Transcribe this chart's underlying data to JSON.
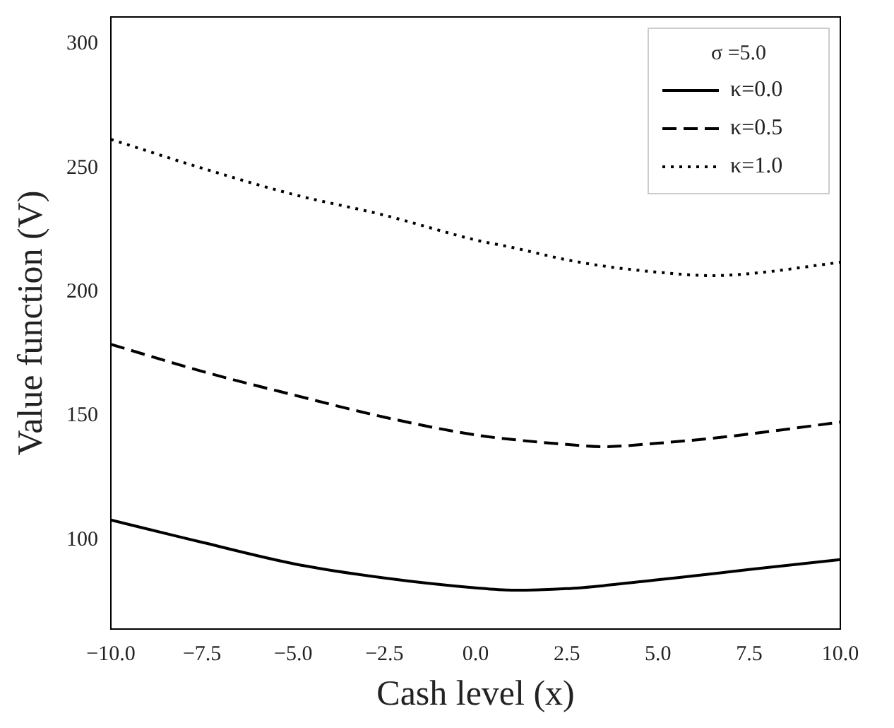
{
  "chart_data": {
    "type": "line",
    "xlabel": "Cash level (x)",
    "ylabel": "Value function (V)",
    "legend_title": "σ =5.0",
    "x": [
      -10,
      -7.5,
      -5,
      -2.5,
      0,
      1,
      2.5,
      3.5,
      5,
      6.5,
      7.5,
      10
    ],
    "series": [
      {
        "name": "κ=0.0",
        "color": "#000000",
        "line_style": "solid",
        "values": [
          108,
          99,
          90.4,
          84.6,
          80.6,
          79.7,
          80.3,
          81.5,
          83.9,
          86.3,
          88,
          92
        ]
      },
      {
        "name": "κ=0.5",
        "color": "#000000",
        "line_style": "dashed",
        "values": [
          178.9,
          168,
          158.5,
          149.5,
          142.3,
          140.5,
          138.5,
          137.6,
          139,
          141,
          142.7,
          147.5
        ]
      },
      {
        "name": "κ=1.0",
        "color": "#000000",
        "line_style": "dotted",
        "values": [
          261.6,
          250,
          239.4,
          231,
          221,
          218,
          213,
          210.5,
          208,
          206.6,
          207.4,
          212
        ]
      }
    ],
    "xlim": [
      -10,
      10
    ],
    "xticks": [
      {
        "value": -10,
        "label": "−10.0"
      },
      {
        "value": -7.5,
        "label": "−7.5"
      },
      {
        "value": -5,
        "label": "−5.0"
      },
      {
        "value": -2.5,
        "label": "−2.5"
      },
      {
        "value": 0,
        "label": "0.0"
      },
      2.5,
      {
        "value": 5,
        "label": "5.0"
      },
      7.5,
      {
        "value": 10,
        "label": "10.0"
      }
    ],
    "ylim": [
      64,
      311
    ],
    "yticks": [
      100,
      150,
      200,
      250,
      300
    ],
    "grid": false,
    "legend": "top right",
    "marker": "none"
  }
}
